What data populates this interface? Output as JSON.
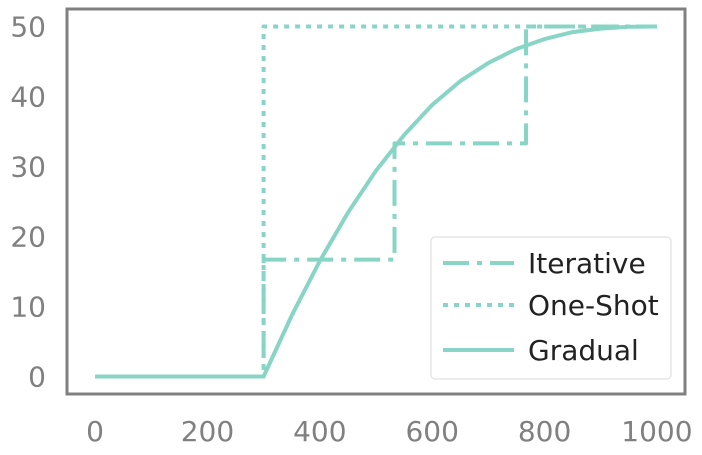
{
  "chart_data": {
    "type": "line",
    "xlim": [
      -50,
      1050
    ],
    "ylim": [
      -2.5,
      52.5
    ],
    "xticks": [
      0,
      200,
      400,
      600,
      800,
      1000
    ],
    "yticks": [
      0,
      10,
      20,
      30,
      40,
      50
    ],
    "xtick_labels": [
      "0",
      "200",
      "400",
      "600",
      "800",
      "1000"
    ],
    "ytick_labels": [
      "0",
      "10",
      "20",
      "30",
      "40",
      "50"
    ],
    "grid": false,
    "legend_position": "bottom-right",
    "colors": {
      "series": "#88d5c5",
      "axes": "#808080",
      "text": "#222222"
    },
    "series": [
      {
        "name": "Iterative",
        "style": "dashdot",
        "x": [
          0,
          300,
          300,
          533,
          533,
          767,
          767,
          1000
        ],
        "y": [
          0,
          0,
          16.7,
          16.7,
          33.3,
          33.3,
          50,
          50
        ]
      },
      {
        "name": "One-Shot",
        "style": "dotted",
        "x": [
          0,
          300,
          300,
          1000
        ],
        "y": [
          0,
          0,
          50,
          50
        ]
      },
      {
        "name": "Gradual",
        "style": "solid",
        "x": [
          0,
          300,
          350,
          400,
          450,
          500,
          550,
          600,
          650,
          700,
          750,
          800,
          850,
          900,
          950,
          1000
        ],
        "y": [
          0,
          0,
          8.7,
          16.5,
          23.4,
          29.4,
          34.5,
          38.8,
          42.2,
          44.8,
          46.8,
          48.2,
          49.2,
          49.7,
          49.95,
          50
        ]
      }
    ]
  }
}
